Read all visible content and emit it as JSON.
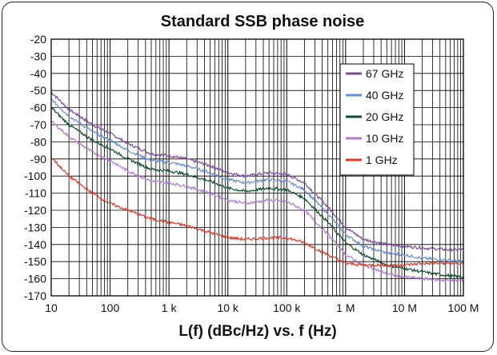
{
  "chart_data": {
    "type": "line",
    "title": "Standard SSB phase noise",
    "xlabel": "L(f)  (dBc/Hz) vs. f (Hz)",
    "ylabel": "",
    "x_scale": "log",
    "xlim": [
      10,
      100000000
    ],
    "ylim": [
      -170,
      -20
    ],
    "x_ticks": [
      {
        "value": 10,
        "label": "10"
      },
      {
        "value": 100,
        "label": "100"
      },
      {
        "value": 1000,
        "label": "1 k"
      },
      {
        "value": 10000,
        "label": "10 k"
      },
      {
        "value": 100000,
        "label": "100 k"
      },
      {
        "value": 1000000,
        "label": "1 M"
      },
      {
        "value": 10000000,
        "label": "10 M"
      },
      {
        "value": 100000000,
        "label": "100 M"
      }
    ],
    "y_ticks": [
      -20,
      -30,
      -40,
      -50,
      -60,
      -70,
      -80,
      -90,
      -100,
      -110,
      -120,
      -130,
      -140,
      -150,
      -160,
      -170
    ],
    "grid": true,
    "legend_position": "top-right",
    "x": [
      10,
      20,
      50,
      100,
      200,
      500,
      1000,
      2000,
      5000,
      10000,
      20000,
      50000,
      100000,
      200000,
      500000,
      1000000,
      2000000,
      5000000,
      10000000,
      20000000,
      50000000,
      100000000
    ],
    "series": [
      {
        "name": "67 GHz",
        "color": "#7b4a9e",
        "values": [
          -51,
          -61,
          -70,
          -75,
          -81,
          -87,
          -88,
          -90,
          -94,
          -98,
          -100,
          -98,
          -99,
          -104,
          -118,
          -130,
          -137,
          -140,
          -141,
          -142,
          -143,
          -143
        ]
      },
      {
        "name": "40 GHz",
        "color": "#6a8fd0",
        "values": [
          -55,
          -65,
          -74,
          -79,
          -85,
          -91,
          -92,
          -94,
          -98,
          -102,
          -104,
          -102,
          -103,
          -108,
          -122,
          -134,
          -141,
          -145,
          -146,
          -148,
          -149,
          -150
        ]
      },
      {
        "name": "20 GHz",
        "color": "#0f4d2e",
        "values": [
          -60,
          -70,
          -79,
          -84,
          -90,
          -96,
          -97,
          -99,
          -103,
          -107,
          -109,
          -107,
          -108,
          -113,
          -127,
          -139,
          -146,
          -152,
          -154,
          -156,
          -158,
          -159
        ]
      },
      {
        "name": "10 GHz",
        "color": "#b17ad0",
        "values": [
          -68,
          -77,
          -86,
          -91,
          -97,
          -103,
          -104,
          -106,
          -110,
          -114,
          -116,
          -114,
          -115,
          -120,
          -134,
          -146,
          -152,
          -157,
          -159,
          -160,
          -161,
          -161
        ]
      },
      {
        "name": "1 GHz",
        "color": "#e03a2a",
        "values": [
          -89,
          -100,
          -110,
          -116,
          -120,
          -125,
          -127,
          -129,
          -133,
          -136,
          -137,
          -136,
          -136,
          -139,
          -146,
          -151,
          -152,
          -152,
          -152,
          -151,
          -151,
          -151
        ]
      }
    ]
  }
}
